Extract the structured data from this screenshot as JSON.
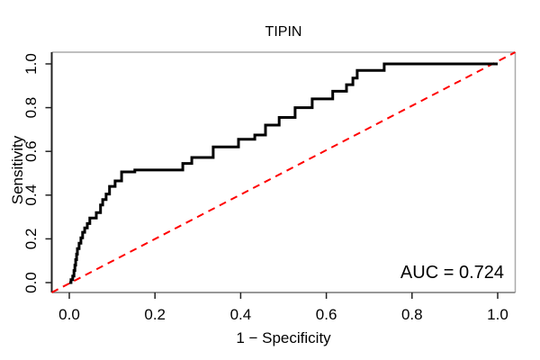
{
  "title": "TIPIN",
  "axes": {
    "x_label": "1 − Specificity",
    "y_label": "Sensitivity",
    "x_ticks": [
      "0.0",
      "0.2",
      "0.4",
      "0.6",
      "0.8",
      "1.0"
    ],
    "y_ticks": [
      "0.0",
      "0.2",
      "0.4",
      "0.6",
      "0.8",
      "1.0"
    ]
  },
  "annotation": {
    "auc_label": "AUC = 0.724",
    "auc_value": 0.724
  },
  "colors": {
    "roc_curve": "#000000",
    "diagonal": "#ff0000",
    "box_light": "#aaaaaa",
    "axis_dark": "#222222",
    "bottom_axis": "#777777"
  },
  "chart_data": {
    "type": "line",
    "subtype": "roc-step",
    "title": "TIPIN",
    "xlabel": "1 − Specificity",
    "ylabel": "Sensitivity",
    "xlim": [
      -0.04,
      1.04
    ],
    "ylim": [
      -0.04,
      1.04
    ],
    "x_tick_values": [
      0.0,
      0.2,
      0.4,
      0.6,
      0.8,
      1.0
    ],
    "y_tick_values": [
      0.0,
      0.2,
      0.4,
      0.6,
      0.8,
      1.0
    ],
    "grid": false,
    "legend": "none",
    "auc": 0.724,
    "series": [
      {
        "name": "ROC curve",
        "color": "#000000",
        "style": "solid",
        "draw": "step-vertical-rise",
        "points": [
          [
            0.0,
            0.0
          ],
          [
            0.004,
            0.013
          ],
          [
            0.008,
            0.03
          ],
          [
            0.011,
            0.055
          ],
          [
            0.013,
            0.08
          ],
          [
            0.015,
            0.105
          ],
          [
            0.017,
            0.13
          ],
          [
            0.019,
            0.155
          ],
          [
            0.023,
            0.18
          ],
          [
            0.027,
            0.205
          ],
          [
            0.031,
            0.23
          ],
          [
            0.036,
            0.25
          ],
          [
            0.042,
            0.27
          ],
          [
            0.048,
            0.295
          ],
          [
            0.063,
            0.32
          ],
          [
            0.073,
            0.355
          ],
          [
            0.078,
            0.38
          ],
          [
            0.086,
            0.405
          ],
          [
            0.094,
            0.44
          ],
          [
            0.107,
            0.465
          ],
          [
            0.122,
            0.506
          ],
          [
            0.153,
            0.515
          ],
          [
            0.265,
            0.545
          ],
          [
            0.286,
            0.572
          ],
          [
            0.336,
            0.62
          ],
          [
            0.395,
            0.655
          ],
          [
            0.433,
            0.675
          ],
          [
            0.458,
            0.72
          ],
          [
            0.49,
            0.755
          ],
          [
            0.527,
            0.8
          ],
          [
            0.567,
            0.84
          ],
          [
            0.615,
            0.875
          ],
          [
            0.647,
            0.905
          ],
          [
            0.662,
            0.935
          ],
          [
            0.672,
            0.97
          ],
          [
            0.735,
            1.0
          ],
          [
            1.0,
            1.0
          ]
        ]
      },
      {
        "name": "chance diagonal",
        "color": "#ff0000",
        "style": "dashed",
        "draw": "line",
        "points": [
          [
            0.0,
            0.0
          ],
          [
            1.0,
            1.0
          ]
        ]
      }
    ]
  }
}
